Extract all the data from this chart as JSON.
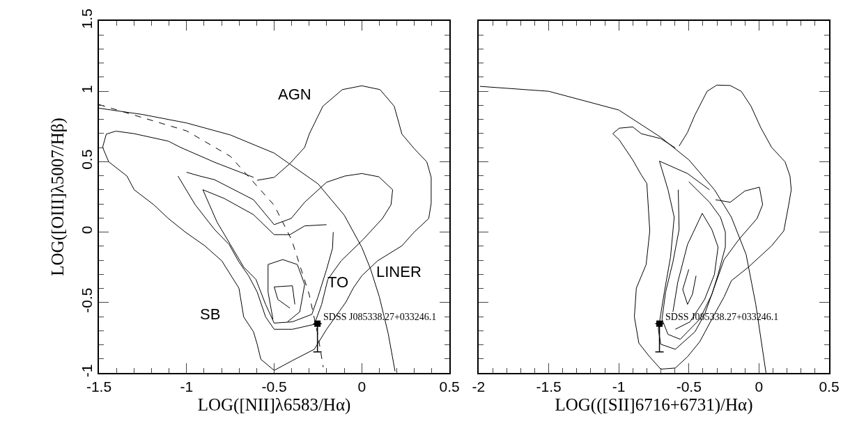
{
  "chart_data": [
    {
      "type": "line",
      "xlabel": "LOG([NII]λ6583/Hα)",
      "ylabel": "LOG([OIII]λ5007/Hβ)",
      "xlim": [
        -1.5,
        0.5
      ],
      "ylim": [
        -1,
        1.5
      ],
      "xticks": [
        -1.5,
        -1,
        -0.5,
        0,
        0.5
      ],
      "yticks": [
        -1,
        -0.5,
        0,
        0.5,
        1,
        1.5
      ],
      "series": [
        {
          "color": "#000000",
          "x": [
            -0.597,
            -0.5,
            -0.41,
            -0.326,
            -0.299,
            -0.222,
            -0.111,
            0,
            0.104,
            0.185,
            0.229,
            0.299,
            0.371,
            0.396,
            0.396,
            0.382,
            0.299,
            0.229,
            0.09,
            0,
            -0.049,
            -0.09,
            -0.201,
            -0.271,
            -0.396,
            -0.5,
            -0.576,
            -0.597,
            -0.618,
            -0.674,
            -0.701,
            -0.799,
            -0.896,
            -1.007,
            -1.104,
            -1.188,
            -1.299,
            -1.34,
            -1.444,
            -1.479,
            -1.458,
            -1.403,
            -1.299,
            -1.104,
            -1.035,
            -0.84,
            -0.618
          ],
          "values": [
            0.368,
            0.389,
            0.487,
            0.602,
            0.699,
            0.894,
            1.012,
            1.039,
            1.012,
            0.894,
            0.696,
            0.593,
            0.499,
            0.389,
            0.204,
            0.097,
            0,
            -0.097,
            -0.204,
            -0.31,
            -0.398,
            -0.496,
            -0.69,
            -0.832,
            -0.912,
            -0.982,
            -0.903,
            -0.796,
            -0.708,
            -0.602,
            -0.398,
            -0.204,
            -0.097,
            0,
            0.097,
            0.195,
            0.301,
            0.398,
            0.499,
            0.602,
            0.696,
            0.717,
            0.699,
            0.646,
            0.602,
            0.496,
            0.389
          ]
        },
        {
          "color": "#000000",
          "x": [
            -1.0,
            -0.924,
            -0.84,
            -0.618,
            -0.5,
            -0.403,
            -0.326,
            -0.201,
            -0.097,
            0,
            0.097,
            0.176,
            0.167,
            0.118,
            0.007,
            -0.118,
            -0.194,
            -0.229,
            -0.271,
            -0.396,
            -0.5,
            -0.549,
            -0.597,
            -0.646,
            -0.701,
            -0.757,
            -0.84,
            -0.951,
            -1.049
          ],
          "values": [
            0.425,
            0.398,
            0.372,
            0.23,
            0.053,
            0.097,
            0.212,
            0.354,
            0.398,
            0.416,
            0.393,
            0.301,
            0.195,
            0.097,
            -0.053,
            -0.204,
            -0.336,
            -0.513,
            -0.655,
            -0.69,
            -0.69,
            -0.602,
            -0.425,
            -0.31,
            -0.212,
            -0.088,
            0.018,
            0.195,
            0.398
          ]
        },
        {
          "color": "#000000",
          "x": [
            -0.163,
            -0.167,
            -0.201,
            -0.25,
            -0.285,
            -0.396,
            -0.5,
            -0.549,
            -0.604,
            -0.674,
            -0.75,
            -0.826,
            -0.907,
            -0.785,
            -0.618,
            -0.5,
            -0.41,
            -0.326,
            -0.201
          ],
          "values": [
            0,
            -0.115,
            -0.265,
            -0.46,
            -0.584,
            -0.637,
            -0.646,
            -0.513,
            -0.336,
            -0.248,
            -0.088,
            0.071,
            0.301,
            0.239,
            0.124,
            -0.018,
            -0.018,
            0.044,
            0.053
          ]
        },
        {
          "color": "#000000",
          "x": [
            -0.507,
            -0.535,
            -0.535,
            -0.451,
            -0.368,
            -0.326,
            -0.354,
            -0.424
          ],
          "values": [
            -0.619,
            -0.425,
            -0.23,
            -0.195,
            -0.23,
            -0.372,
            -0.566,
            -0.637
          ]
        },
        {
          "color": "#000000",
          "x": [
            -0.41,
            -0.479,
            -0.5,
            -0.396,
            -0.382
          ],
          "values": [
            -0.54,
            -0.478,
            -0.389,
            -0.381,
            -0.513
          ]
        },
        {
          "color": "#000000",
          "line_style": "solid",
          "x": [
            -1.5,
            -1.25,
            -1.0,
            -0.75,
            -0.5,
            -0.25,
            -0.1,
            0,
            0.05,
            0.1,
            0.15,
            0.19
          ],
          "values": [
            0.88,
            0.835,
            0.775,
            0.69,
            0.561,
            0.343,
            0.12,
            -0.108,
            -0.262,
            -0.459,
            -0.716,
            -0.989
          ]
        },
        {
          "color": "#000000",
          "line_style": "dashed",
          "x": [
            -1.5,
            -1.0,
            -0.75,
            -0.5,
            -0.4,
            -0.3,
            -0.25,
            -0.22
          ],
          "values": [
            0.906,
            0.719,
            0.538,
            0.191,
            -0.056,
            -0.443,
            -0.733,
            -0.959
          ]
        },
        {
          "type": "scatter",
          "marker": "square",
          "color": "#000000",
          "x": [
            -0.253
          ],
          "values": [
            -0.65
          ],
          "errors": [
            [
              -0.85,
              -0.65
            ]
          ]
        }
      ],
      "annotations": [
        {
          "text": "SDSS J085338.27+033246.1",
          "x": -0.253,
          "y": -0.65
        },
        "AGN",
        "TO",
        "LINER",
        "SB"
      ]
    },
    {
      "type": "line",
      "xlabel": "LOG(([SII]6716+6731)/Hα)",
      "tick_labels": "x",
      "xlim": [
        -2,
        0.5
      ],
      "ylim": [
        -1,
        1.5
      ],
      "xticks": [
        -2,
        -1.5,
        -1,
        -0.5,
        0,
        0.5
      ],
      "yticks": [
        -1,
        -0.5,
        0,
        0.5,
        1,
        1.5
      ],
      "series": [
        {
          "color": "#000000",
          "x": [
            -0.57,
            -0.51,
            -0.457,
            -0.37,
            -0.301,
            -0.205,
            -0.127,
            -0.057,
            0.012,
            0.09,
            0.186,
            0.221,
            0.23,
            0.212,
            0.177,
            0.09,
            -0.075,
            -0.197,
            -0.249,
            -0.318,
            -0.423,
            -0.51,
            -0.597,
            -0.701,
            -0.788,
            -0.857,
            -0.889,
            -0.875,
            -0.805,
            -0.779,
            -0.8,
            -0.84,
            -0.901,
            -0.997,
            -1.043,
            -0.997,
            -0.901,
            -0.84,
            -0.701,
            -0.597
          ],
          "values": [
            0.611,
            0.708,
            0.832,
            1.0,
            1.044,
            1.041,
            1.0,
            0.894,
            0.743,
            0.602,
            0.499,
            0.398,
            0.301,
            0.195,
            0.009,
            -0.097,
            -0.248,
            -0.345,
            -0.46,
            -0.584,
            -0.779,
            -0.885,
            -0.965,
            -0.973,
            -0.876,
            -0.788,
            -0.602,
            -0.398,
            -0.23,
            0.009,
            0.345,
            0.407,
            0.513,
            0.655,
            0.699,
            0.738,
            0.747,
            0.699,
            0.664,
            0.598
          ]
        },
        {
          "color": "#000000",
          "x": [
            -0.31,
            -0.205,
            -0.101,
            0.003,
            0.026,
            -0.014,
            -0.144,
            -0.249,
            -0.318,
            -0.388,
            -0.457,
            -0.597,
            -0.701,
            -0.718,
            -0.701,
            -0.675,
            -0.631,
            -0.605,
            -0.649,
            -0.71,
            -0.51,
            -0.353
          ],
          "values": [
            0.23,
            0.212,
            0.292,
            0.319,
            0.195,
            0.097,
            -0.053,
            -0.195,
            -0.389,
            -0.584,
            -0.708,
            -0.832,
            -0.796,
            -0.69,
            -0.584,
            -0.425,
            -0.177,
            0.106,
            0.301,
            0.504,
            0.416,
            0.301
          ]
        },
        {
          "color": "#000000",
          "x": [
            -0.501,
            -0.353,
            -0.275,
            -0.24,
            -0.24,
            -0.292,
            -0.336,
            -0.423,
            -0.562,
            -0.649,
            -0.692,
            -0.666,
            -0.614,
            -0.57,
            -0.576
          ],
          "values": [
            0.358,
            0.212,
            0.106,
            0,
            -0.106,
            -0.301,
            -0.442,
            -0.619,
            -0.761,
            -0.726,
            -0.619,
            -0.425,
            -0.212,
            0.018,
            0.301
          ]
        },
        {
          "color": "#000000",
          "x": [
            -0.614,
            -0.579,
            -0.51,
            -0.405,
            -0.336,
            -0.292,
            -0.318,
            -0.388,
            -0.492,
            -0.597
          ],
          "values": [
            -0.566,
            -0.354,
            -0.088,
            0.133,
            0.018,
            -0.106,
            -0.301,
            -0.478,
            -0.637,
            -0.69
          ]
        },
        {
          "color": "#000000",
          "x": [
            -0.449,
            -0.475,
            -0.51,
            -0.544,
            -0.501
          ],
          "values": [
            -0.31,
            -0.442,
            -0.513,
            -0.407,
            -0.265
          ]
        },
        {
          "color": "#000000",
          "line_style": "solid",
          "x": [
            -1.99,
            -1.5,
            -1.0,
            -0.7,
            -0.5,
            -0.318,
            -0.197,
            -0.092,
            -0.023,
            0.05
          ],
          "values": [
            1.035,
            1.0,
            0.867,
            0.673,
            0.513,
            0.301,
            0.106,
            -0.159,
            -0.513,
            -1.0
          ]
        },
        {
          "type": "scatter",
          "marker": "square",
          "color": "#000000",
          "x": [
            -0.71
          ],
          "values": [
            -0.65
          ],
          "errors": [
            [
              -0.85,
              -0.65
            ]
          ]
        }
      ],
      "annotations": [
        {
          "text": "SDSS J085338.27+033246.1",
          "x": -0.71,
          "y": -0.65
        }
      ]
    }
  ]
}
